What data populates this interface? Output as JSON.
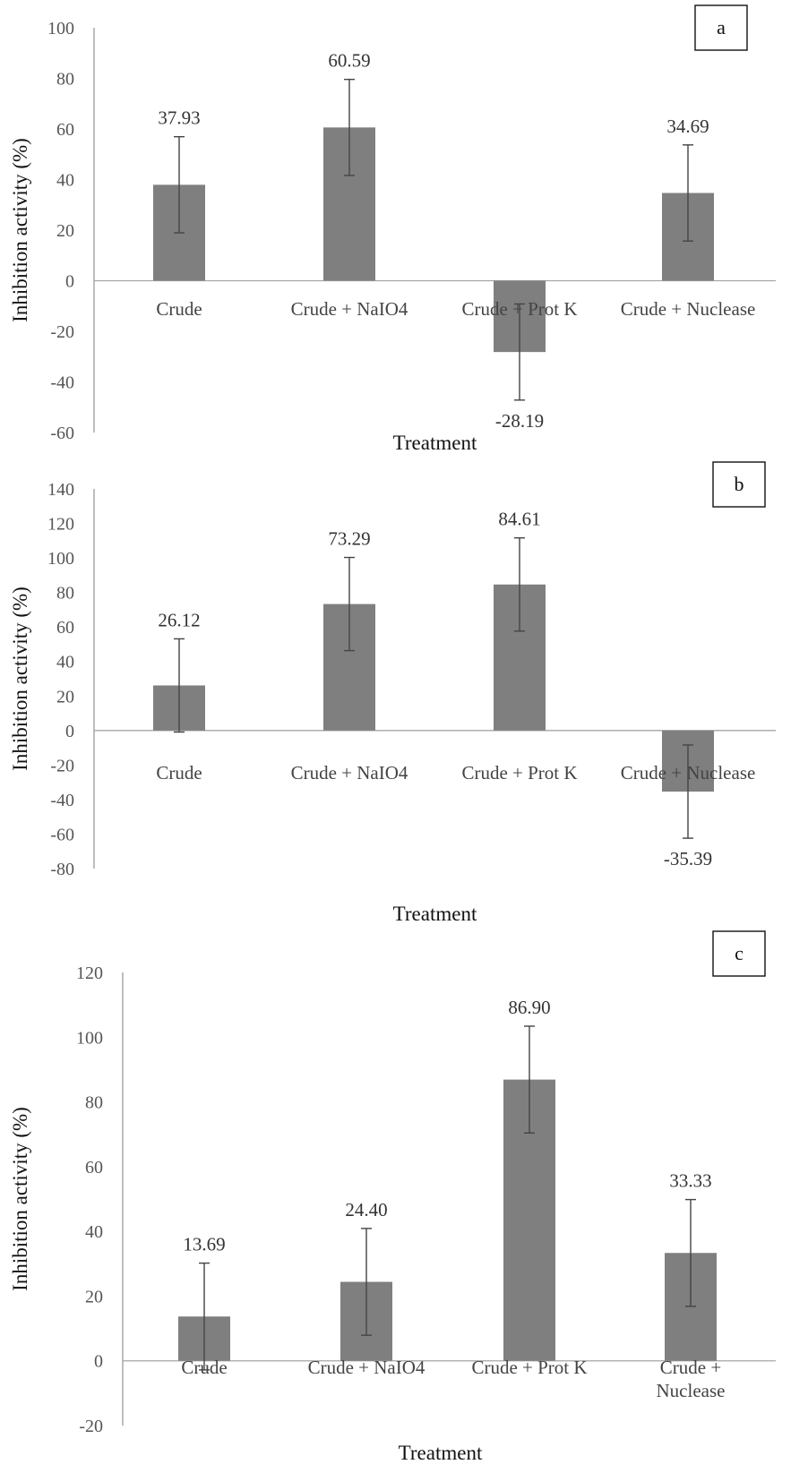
{
  "chart_data": [
    {
      "type": "bar",
      "panel_label": "a",
      "title": "",
      "xlabel": "Treatment",
      "ylabel": "Inhibition activity (%)",
      "ylim": [
        -60,
        100
      ],
      "ytick_step": 20,
      "yticks": [
        "100",
        "80",
        "60",
        "40",
        "20",
        "0",
        "-20",
        "-40",
        "-60"
      ],
      "categories": [
        [
          "Crude"
        ],
        [
          "Crude + NaIO4"
        ],
        [
          "Crude + Prot K"
        ],
        [
          "Crude + Nuclease"
        ]
      ],
      "values": [
        37.93,
        60.59,
        -28.19,
        34.69
      ],
      "value_labels": [
        "37.93",
        "60.59",
        "-28.19",
        "34.69"
      ],
      "error": [
        19,
        19,
        19,
        19
      ],
      "bar_color": "#7f7f7f",
      "grid": false,
      "legend": "none"
    },
    {
      "type": "bar",
      "panel_label": "b",
      "title": "",
      "xlabel": "Treatment",
      "ylabel": "Inhibition activity (%)",
      "ylim": [
        -80,
        140
      ],
      "ytick_step": 20,
      "yticks": [
        "140",
        "120",
        "100",
        "80",
        "60",
        "40",
        "20",
        "0",
        "-20",
        "-40",
        "-60",
        "-80"
      ],
      "categories": [
        [
          "Crude"
        ],
        [
          "Crude + NaIO4"
        ],
        [
          "Crude + Prot K"
        ],
        [
          "Crude + Nuclease"
        ]
      ],
      "values": [
        26.12,
        73.29,
        84.61,
        -35.39
      ],
      "value_labels": [
        "26.12",
        "73.29",
        "84.61",
        "-35.39"
      ],
      "error": [
        27,
        27,
        27,
        27
      ],
      "bar_color": "#7f7f7f",
      "grid": false,
      "legend": "none"
    },
    {
      "type": "bar",
      "panel_label": "c",
      "title": "",
      "xlabel": "Treatment",
      "ylabel": "Inhibition activity (%)",
      "ylim": [
        -20,
        120
      ],
      "ytick_step": 20,
      "yticks": [
        "120",
        "100",
        "80",
        "60",
        "40",
        "20",
        "0",
        "-20"
      ],
      "categories": [
        [
          "Crude"
        ],
        [
          "Crude + NaIO4"
        ],
        [
          "Crude + Prot K"
        ],
        [
          "Crude +",
          "Nuclease"
        ]
      ],
      "values": [
        13.69,
        24.4,
        86.9,
        33.33
      ],
      "value_labels": [
        "13.69",
        "24.40",
        "86.90",
        "33.33"
      ],
      "error": [
        16.5,
        16.5,
        16.5,
        16.5
      ],
      "bar_color": "#7f7f7f",
      "grid": false,
      "legend": "none"
    }
  ]
}
